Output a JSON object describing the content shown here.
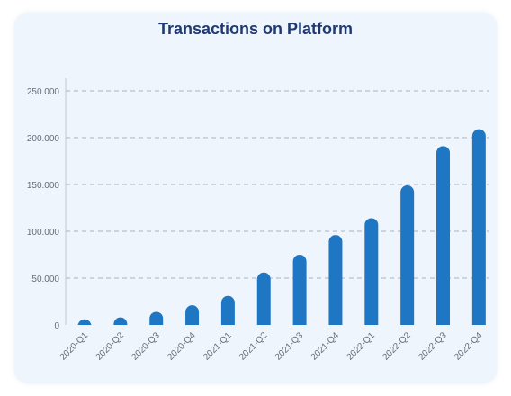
{
  "chart_data": {
    "type": "bar",
    "title": "Transactions on Platform",
    "xlabel": "",
    "ylabel": "",
    "categories": [
      "2020-Q1",
      "2020-Q2",
      "2020-Q3",
      "2020-Q4",
      "2021-Q1",
      "2021-Q2",
      "2021-Q3",
      "2021-Q4",
      "2022-Q1",
      "2022-Q2",
      "2022-Q3",
      "2022-Q4"
    ],
    "values": [
      6000,
      8000,
      14000,
      21000,
      31000,
      56000,
      75000,
      96000,
      114000,
      149000,
      191000,
      209000
    ],
    "ylim": [
      0,
      250000
    ],
    "yticks": [
      0,
      50000,
      100000,
      150000,
      200000,
      250000
    ],
    "ytick_labels": [
      "0",
      "50.000",
      "100.000",
      "150.000",
      "200.000",
      "250.000"
    ],
    "grid": true,
    "colors": {
      "bar": "#1f77c4",
      "grid": "#a9b3bf",
      "title": "#1f3a72"
    }
  }
}
